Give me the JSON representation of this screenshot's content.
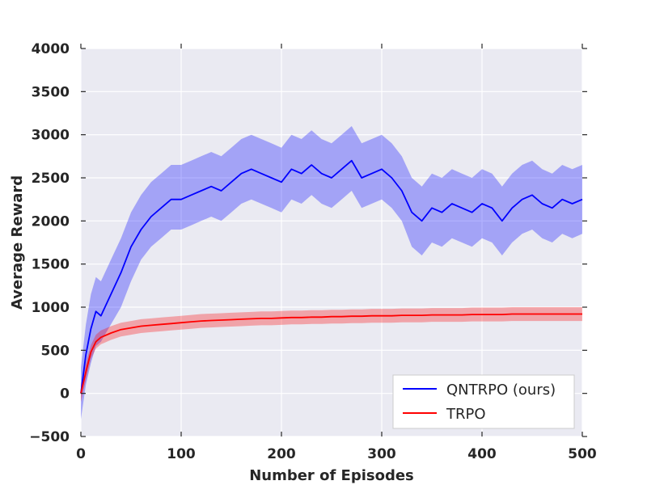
{
  "chart_data": {
    "type": "line",
    "title": "",
    "xlabel": "Number of Episodes",
    "ylabel": "Average Reward",
    "xlim": [
      0,
      500
    ],
    "ylim": [
      -500,
      4000
    ],
    "xticks": [
      "0",
      "100",
      "200",
      "300",
      "400",
      "500"
    ],
    "yticks": [
      "−500",
      "0",
      "500",
      "1000",
      "1500",
      "2000",
      "2500",
      "3000",
      "3500",
      "4000"
    ],
    "grid": true,
    "legend_position": "bottom-right",
    "colors": {
      "background": "#EAEAF2",
      "grid": "#FFFFFF",
      "QNTRPO": "#0000FF",
      "TRPO": "#FF0000"
    },
    "x": [
      0,
      5,
      10,
      15,
      20,
      30,
      40,
      50,
      60,
      70,
      80,
      90,
      100,
      110,
      120,
      130,
      140,
      150,
      160,
      170,
      180,
      190,
      200,
      210,
      220,
      230,
      240,
      250,
      260,
      270,
      280,
      290,
      300,
      310,
      320,
      330,
      340,
      350,
      360,
      370,
      380,
      390,
      400,
      410,
      420,
      430,
      440,
      450,
      460,
      470,
      480,
      490,
      500
    ],
    "series": [
      {
        "name": "QNTRPO (ours)",
        "values": [
          0,
          450,
          750,
          950,
          900,
          1150,
          1400,
          1700,
          1900,
          2050,
          2150,
          2250,
          2250,
          2300,
          2350,
          2400,
          2350,
          2450,
          2550,
          2600,
          2550,
          2500,
          2450,
          2600,
          2550,
          2650,
          2550,
          2500,
          2600,
          2700,
          2500,
          2550,
          2600,
          2500,
          2350,
          2100,
          2000,
          2150,
          2100,
          2200,
          2150,
          2100,
          2200,
          2150,
          2000,
          2150,
          2250,
          2300,
          2200,
          2150,
          2250,
          2200,
          2250
        ],
        "lower": [
          -300,
          100,
          350,
          550,
          600,
          800,
          1000,
          1300,
          1550,
          1700,
          1800,
          1900,
          1900,
          1950,
          2000,
          2050,
          2000,
          2100,
          2200,
          2250,
          2200,
          2150,
          2100,
          2250,
          2200,
          2300,
          2200,
          2150,
          2250,
          2350,
          2150,
          2200,
          2250,
          2150,
          2000,
          1700,
          1600,
          1750,
          1700,
          1800,
          1750,
          1700,
          1800,
          1750,
          1600,
          1750,
          1850,
          1900,
          1800,
          1750,
          1850,
          1800,
          1850
        ],
        "upper": [
          300,
          800,
          1150,
          1350,
          1300,
          1550,
          1800,
          2100,
          2300,
          2450,
          2550,
          2650,
          2650,
          2700,
          2750,
          2800,
          2750,
          2850,
          2950,
          3000,
          2950,
          2900,
          2850,
          3000,
          2950,
          3050,
          2950,
          2900,
          3000,
          3100,
          2900,
          2950,
          3000,
          2900,
          2750,
          2500,
          2400,
          2550,
          2500,
          2600,
          2550,
          2500,
          2600,
          2550,
          2400,
          2550,
          2650,
          2700,
          2600,
          2550,
          2650,
          2600,
          2650
        ]
      },
      {
        "name": "TRPO",
        "values": [
          0,
          250,
          480,
          600,
          650,
          700,
          740,
          760,
          780,
          790,
          800,
          810,
          820,
          830,
          840,
          845,
          850,
          855,
          860,
          865,
          870,
          870,
          875,
          880,
          880,
          885,
          885,
          890,
          890,
          895,
          895,
          900,
          900,
          900,
          905,
          905,
          905,
          910,
          910,
          910,
          910,
          915,
          915,
          915,
          915,
          920,
          920,
          920,
          920,
          920,
          920,
          920,
          920
        ],
        "lower": [
          -100,
          150,
          400,
          520,
          570,
          620,
          660,
          680,
          700,
          710,
          720,
          730,
          740,
          750,
          760,
          765,
          770,
          775,
          780,
          785,
          790,
          790,
          795,
          800,
          800,
          805,
          805,
          810,
          810,
          815,
          815,
          820,
          820,
          820,
          825,
          825,
          825,
          830,
          830,
          830,
          830,
          835,
          835,
          835,
          835,
          840,
          840,
          840,
          840,
          840,
          840,
          840,
          840
        ],
        "upper": [
          100,
          350,
          560,
          680,
          730,
          780,
          820,
          840,
          860,
          870,
          880,
          890,
          900,
          910,
          920,
          925,
          930,
          935,
          940,
          945,
          950,
          950,
          955,
          960,
          960,
          965,
          965,
          970,
          970,
          975,
          975,
          980,
          980,
          980,
          985,
          985,
          985,
          990,
          990,
          990,
          990,
          995,
          995,
          995,
          995,
          1000,
          1000,
          1000,
          1000,
          1000,
          1000,
          1000,
          1000
        ]
      }
    ]
  }
}
